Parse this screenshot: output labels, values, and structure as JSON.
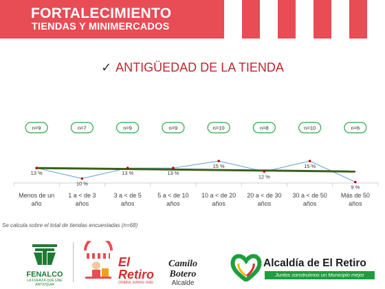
{
  "header": {
    "title_line1": "FORTALECIMIENTO",
    "title_line2": "TIENDAS Y MINIMERCADOS",
    "color": "#e84c55"
  },
  "section": {
    "check_icon": "✓",
    "title": "ANTIGÜEDAD DE LA TIENDA",
    "title_color": "#c0252e"
  },
  "chart_data": {
    "type": "line",
    "categories": [
      [
        "Menos de un",
        "año"
      ],
      [
        "1 a < de 3",
        "años"
      ],
      [
        "3 a < de 5",
        "años"
      ],
      [
        "5 a < de 10",
        "años"
      ],
      [
        "10 a < de 20",
        "años"
      ],
      [
        "20 a < de 30",
        "años"
      ],
      [
        "30 a < de 50",
        "años"
      ],
      [
        "Más de 50",
        "años"
      ]
    ],
    "series": [
      {
        "values": [
          13,
          10,
          13,
          13,
          15,
          12,
          15,
          9
        ],
        "data_labels": [
          "13 %",
          "10 %",
          "13 %",
          "13 %",
          "15 %",
          "12 %",
          "15 %",
          "9 %"
        ],
        "sample_sizes": [
          "n=9",
          "n=7",
          "n=9",
          "n=9",
          "n=10",
          "n=8",
          "n=10",
          "n=6"
        ],
        "line_color": "#5b9bd5",
        "marker_color": "#c00000"
      }
    ],
    "trendline": {
      "start": 13.0,
      "end": 12.0,
      "color": "#3a5f1c"
    },
    "ylim": [
      5,
      25
    ],
    "badge_border_color": "#27a844",
    "grid": false,
    "legend": "none"
  },
  "footnote": "Se calcula sobre el total de tiendas encuestadas (n=68)",
  "logos": {
    "fenalco_name": "FENALCO",
    "fenalco_tagline": "LA FUERZA QUE UNE",
    "fenalco_region": "ANTIOQUIA",
    "retiro_word": "El Retiro",
    "retiro_tagline": "Unidos somos más",
    "botero_name": "Camilo Botero",
    "botero_role": "Alcalde",
    "alcaldia_name": "Alcaldía de El Retiro",
    "alcaldia_slogan": "Juntos construimos un Municipio mejor"
  }
}
